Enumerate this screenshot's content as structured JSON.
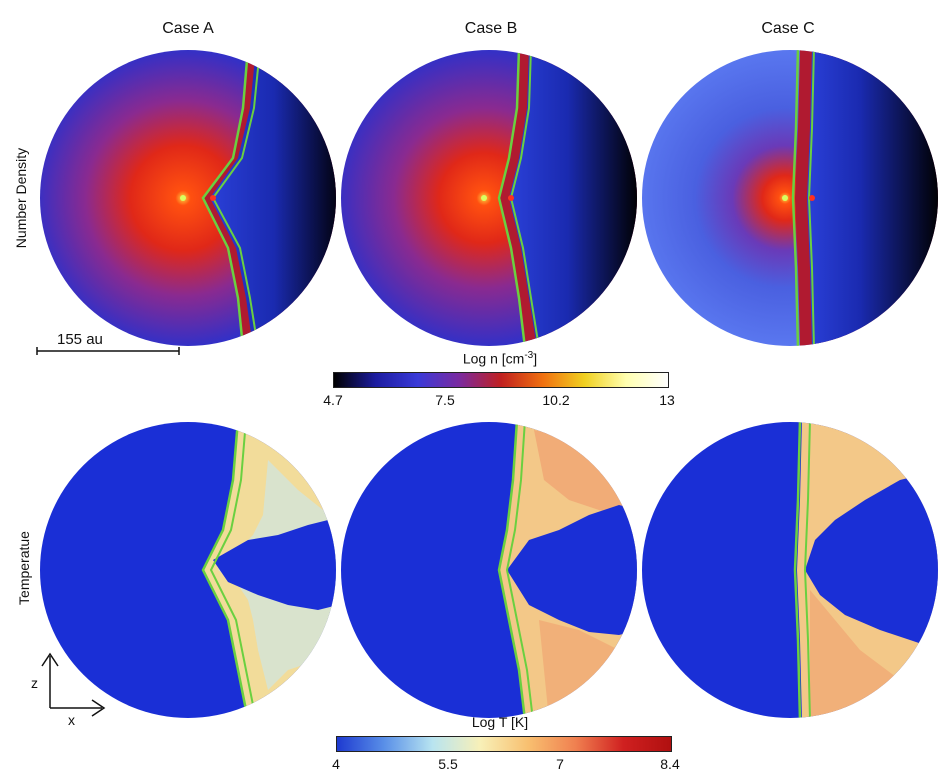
{
  "columns": [
    "Case A",
    "Case B",
    "Case C"
  ],
  "rows": [
    "Number Density",
    "Temperatue"
  ],
  "scale_bar": {
    "label": "155 au"
  },
  "density_colorbar": {
    "label_main": "Log n [cm",
    "label_sup": "-3",
    "label_end": "]",
    "ticks": [
      "4.7",
      "7.5",
      "10.2",
      "13"
    ],
    "colors": [
      "#000000",
      "#1c1ca0",
      "#3a3ad8",
      "#7a2aa0",
      "#c02020",
      "#f07010",
      "#f0d020",
      "#ffffb0",
      "#ffffff"
    ]
  },
  "temperature_colorbar": {
    "label": "Log T [K]",
    "ticks": [
      "4",
      "5.5",
      "7",
      "8.4"
    ],
    "colors": [
      "#1e3ad0",
      "#5a90e8",
      "#b8e4f0",
      "#f8f0b8",
      "#f8c070",
      "#f08050",
      "#d02020",
      "#b01010"
    ]
  },
  "axes_icon": {
    "z": "z",
    "x": "x"
  },
  "colors": {
    "front": "#6ad040",
    "disk_blue": "#1a2fd6",
    "density_bg": "#3030c8",
    "density_core": "#ff2a10"
  }
}
